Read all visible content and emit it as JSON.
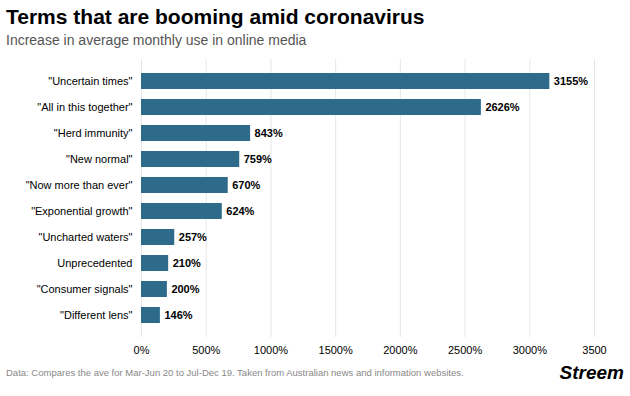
{
  "chart_data": {
    "type": "bar",
    "orientation": "horizontal",
    "title": "Terms that are booming amid coronavirus",
    "subtitle": "Increase in average monthly use in online media",
    "annotations": [
      "Data: Compares the ave for Mar-Jun 20 to Jul-Dec 19. Taken from Australian news and information websites.",
      "Streem"
    ],
    "categories": [
      "\"Different lens\"",
      "\"Consumer signals\"",
      "Unprecedented",
      "\"Uncharted waters\"",
      "\"Exponential growth\"",
      "\"Now more than ever\"",
      "\"New normal\"",
      "\"Herd immunity\"",
      "\"All in this together\"",
      "\"Uncertain times\""
    ],
    "values": [
      146,
      200,
      210,
      257,
      624,
      670,
      759,
      843,
      2626,
      3155
    ],
    "value_labels": [
      "146%",
      "200%",
      "210%",
      "257%",
      "624%",
      "670%",
      "759%",
      "843%",
      "2626%",
      "3155%"
    ],
    "data_labels": true,
    "color": "#2e6b8a",
    "xlim": [
      0,
      3500
    ],
    "xticks": [
      {
        "value": 0,
        "label": "0%"
      },
      {
        "value": 500,
        "label": "500%"
      },
      {
        "value": 1000,
        "label": "1000%"
      },
      {
        "value": 1500,
        "label": "1500%"
      },
      {
        "value": 2000,
        "label": "2000%"
      },
      {
        "value": 2500,
        "label": "2500%"
      },
      {
        "value": 3000,
        "label": "3000%"
      },
      3500
    ],
    "grid": true
  }
}
